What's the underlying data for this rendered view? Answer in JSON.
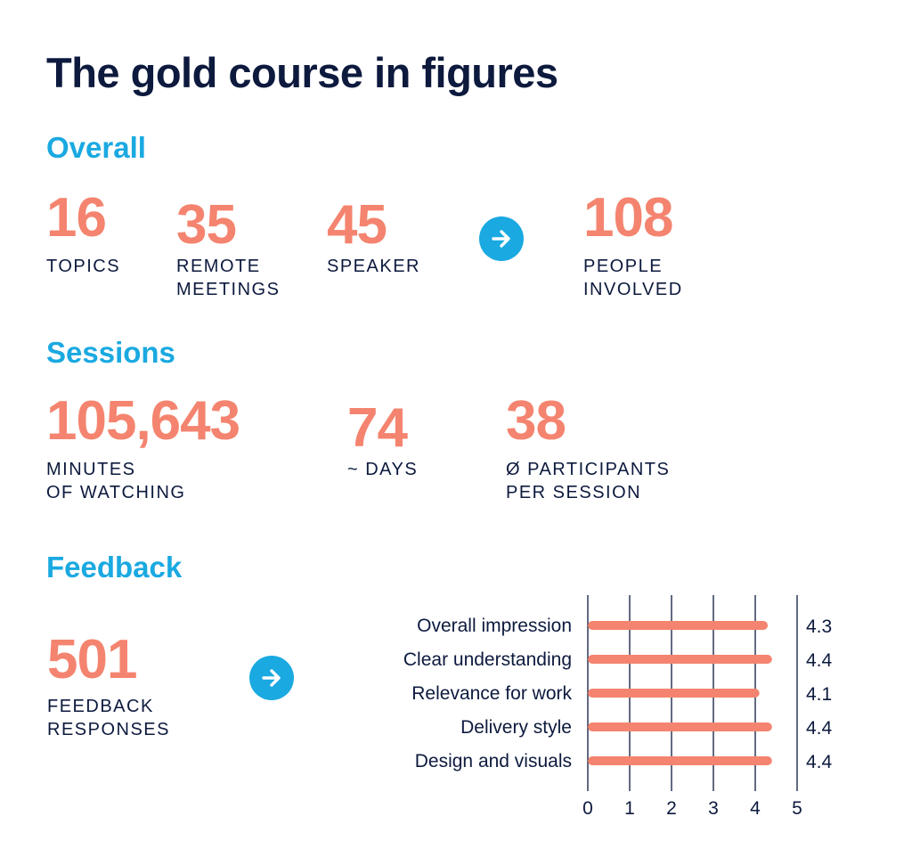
{
  "title": "The gold course in figures",
  "overall": {
    "heading": "Overall",
    "stats": [
      {
        "value": "16",
        "label_line1": "TOPICS",
        "label_line2": ""
      },
      {
        "value": "35",
        "label_line1": "REMOTE",
        "label_line2": "MEETINGS"
      },
      {
        "value": "45",
        "label_line1": "SPEAKER",
        "label_line2": ""
      },
      {
        "value": "108",
        "label_line1": "PEOPLE",
        "label_line2": "INVOLVED"
      }
    ]
  },
  "sessions": {
    "heading": "Sessions",
    "stats": [
      {
        "value": "105,643",
        "label_line1": "MINUTES",
        "label_line2": "OF WATCHING"
      },
      {
        "value": "74",
        "label_line1": "~ DAYS",
        "label_line2": ""
      },
      {
        "value": "38",
        "label_line1": "Ø PARTICIPANTS",
        "label_line2": "PER SESSION"
      }
    ]
  },
  "feedback": {
    "heading": "Feedback",
    "responses": {
      "value": "501",
      "label_line1": "FEEDBACK",
      "label_line2": "RESPONSES"
    }
  },
  "icons": {
    "arrow": "arrow-right-circle-icon"
  },
  "colors": {
    "navy": "#0d1a3e",
    "blue": "#1aa9e1",
    "coral": "#f4846f"
  },
  "chart_data": {
    "type": "bar",
    "orientation": "horizontal",
    "categories": [
      "Overall impression",
      "Clear understanding",
      "Relevance for work",
      "Delivery style",
      "Design and visuals"
    ],
    "values": [
      4.3,
      4.4,
      4.1,
      4.4,
      4.4
    ],
    "value_labels": [
      "4.3",
      "4.4",
      "4.1",
      "4.4",
      "4.4"
    ],
    "xlim": [
      0,
      5
    ],
    "xticks": [
      "0",
      "1",
      "2",
      "3",
      "4",
      "5"
    ],
    "grid": true,
    "title": "",
    "xlabel": "",
    "ylabel": ""
  }
}
